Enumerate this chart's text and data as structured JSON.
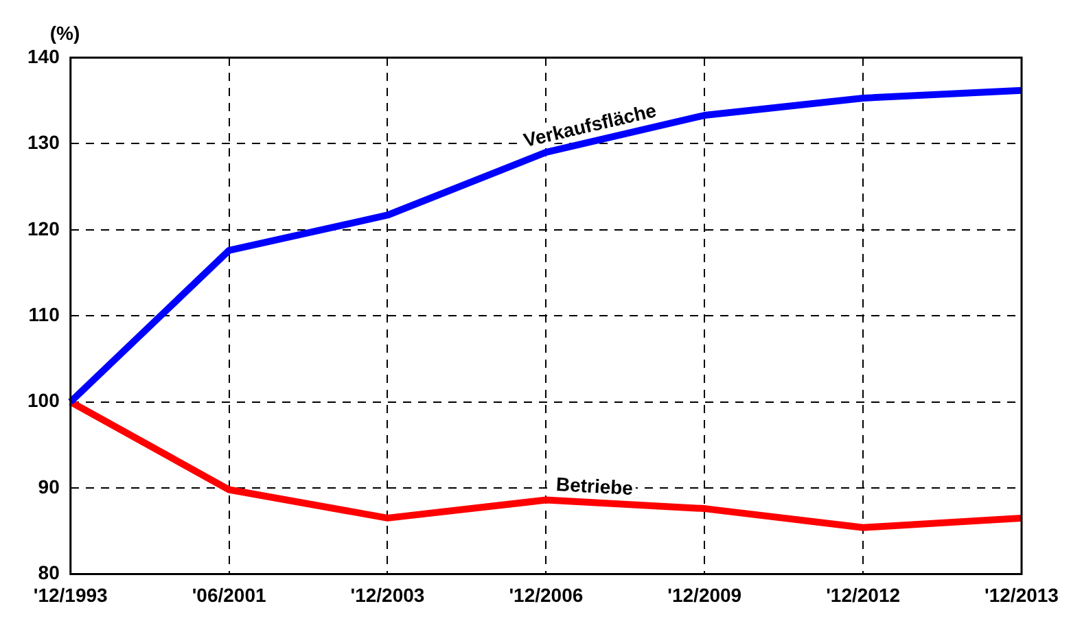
{
  "chart_data": {
    "type": "line",
    "ylabel": "(%)",
    "categories": [
      "'12/1993",
      "'06/2001",
      "'12/2003",
      "'12/2006",
      "'12/2009",
      "'12/2012",
      "'12/2013"
    ],
    "series": [
      {
        "name": "Verkaufsfläche",
        "color": "#0000ff",
        "values": [
          100,
          117.6,
          121.7,
          129.0,
          133.3,
          135.3,
          136.2
        ]
      },
      {
        "name": "Betriebe",
        "color": "#ff0000",
        "values": [
          100,
          89.8,
          86.5,
          88.6,
          87.6,
          85.4,
          86.5
        ]
      }
    ],
    "ylim": [
      80,
      140
    ],
    "yticks": [
      80,
      90,
      100,
      110,
      120,
      130,
      140
    ],
    "grid": true,
    "legend": false,
    "marker": "none",
    "line_style": "solid"
  }
}
